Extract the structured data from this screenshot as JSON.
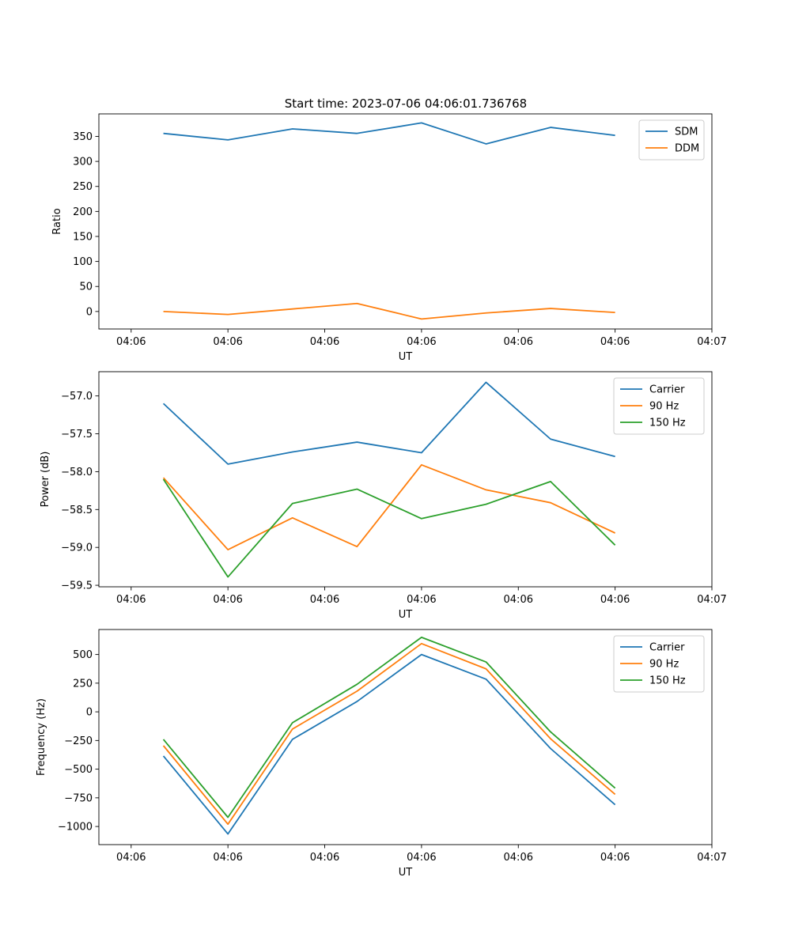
{
  "figure": {
    "title": "Start time: 2023-07-06 04:06:01.736768"
  },
  "chart_data": [
    {
      "type": "line",
      "xlabel": "UT",
      "ylabel": "Ratio",
      "x_ticklabels": [
        "04:06",
        "04:06",
        "04:06",
        "04:06",
        "04:06",
        "04:06",
        "04:07"
      ],
      "xlim": [
        -0.5,
        9.0
      ],
      "ylim": [
        -35,
        395
      ],
      "yticks": [
        0,
        50,
        100,
        150,
        200,
        250,
        300,
        350
      ],
      "ytick_labels": [
        "0",
        "50",
        "100",
        "150",
        "200",
        "250",
        "300",
        "350"
      ],
      "legend_position": "top-right",
      "x": [
        0.5,
        1.5,
        2.5,
        3.5,
        4.5,
        5.5,
        6.5,
        7.5
      ],
      "series": [
        {
          "name": "SDM",
          "color": "#1f77b4",
          "values": [
            356,
            343,
            365,
            356,
            377,
            335,
            368,
            352
          ]
        },
        {
          "name": "DDM",
          "color": "#ff7f0e",
          "values": [
            0,
            -6,
            5,
            16,
            -15,
            -3,
            6,
            -2
          ]
        }
      ]
    },
    {
      "type": "line",
      "xlabel": "UT",
      "ylabel": "Power (dB)",
      "x_ticklabels": [
        "04:06",
        "04:06",
        "04:06",
        "04:06",
        "04:06",
        "04:06",
        "04:07"
      ],
      "xlim": [
        -0.5,
        9.0
      ],
      "ylim": [
        -59.52,
        -56.68
      ],
      "yticks": [
        -59.5,
        -59.0,
        -58.5,
        -58.0,
        -57.5,
        -57.0
      ],
      "ytick_labels": [
        "−59.5",
        "−59.0",
        "−58.5",
        "−58.0",
        "−57.5",
        "−57.0"
      ],
      "legend_position": "top-right",
      "x": [
        0.5,
        1.5,
        2.5,
        3.5,
        4.5,
        5.5,
        6.5,
        7.5
      ],
      "series": [
        {
          "name": "Carrier",
          "color": "#1f77b4",
          "values": [
            -57.1,
            -57.9,
            -57.74,
            -57.61,
            -57.75,
            -56.82,
            -57.57,
            -57.8
          ]
        },
        {
          "name": "90 Hz",
          "color": "#ff7f0e",
          "values": [
            -58.08,
            -59.03,
            -58.61,
            -58.99,
            -57.91,
            -58.24,
            -58.41,
            -58.81
          ]
        },
        {
          "name": "150 Hz",
          "color": "#2ca02c",
          "values": [
            -58.1,
            -59.39,
            -58.42,
            -58.23,
            -58.62,
            -58.43,
            -58.13,
            -58.97
          ]
        }
      ]
    },
    {
      "type": "line",
      "xlabel": "UT",
      "ylabel": "Frequency (Hz)",
      "x_ticklabels": [
        "04:06",
        "04:06",
        "04:06",
        "04:06",
        "04:06",
        "04:06",
        "04:07"
      ],
      "xlim": [
        -0.5,
        9.0
      ],
      "ylim": [
        -1158,
        718
      ],
      "yticks": [
        -1000,
        -750,
        -500,
        -250,
        0,
        250,
        500
      ],
      "ytick_labels": [
        "−1000",
        "−750",
        "−500",
        "−250",
        "0",
        "250",
        "500"
      ],
      "legend_position": "top-right",
      "x": [
        0.5,
        1.5,
        2.5,
        3.5,
        4.5,
        5.5,
        6.5,
        7.5
      ],
      "series": [
        {
          "name": "Carrier",
          "color": "#1f77b4",
          "values": [
            -385,
            -1065,
            -240,
            90,
            500,
            285,
            -320,
            -810
          ]
        },
        {
          "name": "90 Hz",
          "color": "#ff7f0e",
          "values": [
            -295,
            -980,
            -150,
            180,
            595,
            375,
            -235,
            -720
          ]
        },
        {
          "name": "150 Hz",
          "color": "#2ca02c",
          "values": [
            -240,
            -920,
            -95,
            240,
            650,
            435,
            -175,
            -665
          ]
        }
      ]
    }
  ]
}
